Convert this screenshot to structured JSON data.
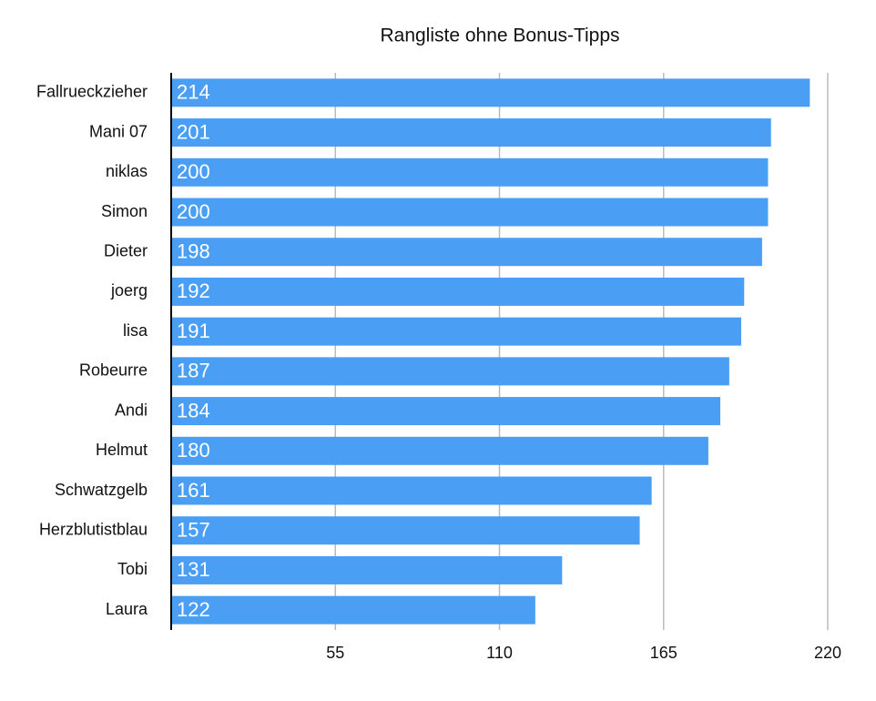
{
  "chart_data": {
    "type": "bar",
    "orientation": "horizontal",
    "title": "Rangliste ohne Bonus-Tipps",
    "categories": [
      "Fallrueckzieher",
      "Mani 07",
      "niklas",
      "Simon",
      "Dieter",
      "joerg",
      "lisa",
      "Robeurre",
      "Andi",
      "Helmut",
      "Schwatzgelb",
      "Herzblutistblau",
      "Tobi",
      "Laura"
    ],
    "values": [
      214,
      201,
      200,
      200,
      198,
      192,
      191,
      187,
      184,
      180,
      161,
      157,
      131,
      122
    ],
    "color": "#4a9ff5",
    "xlim": [
      0,
      220
    ],
    "xticks": [
      55,
      110,
      165,
      220
    ],
    "grid": true
  }
}
